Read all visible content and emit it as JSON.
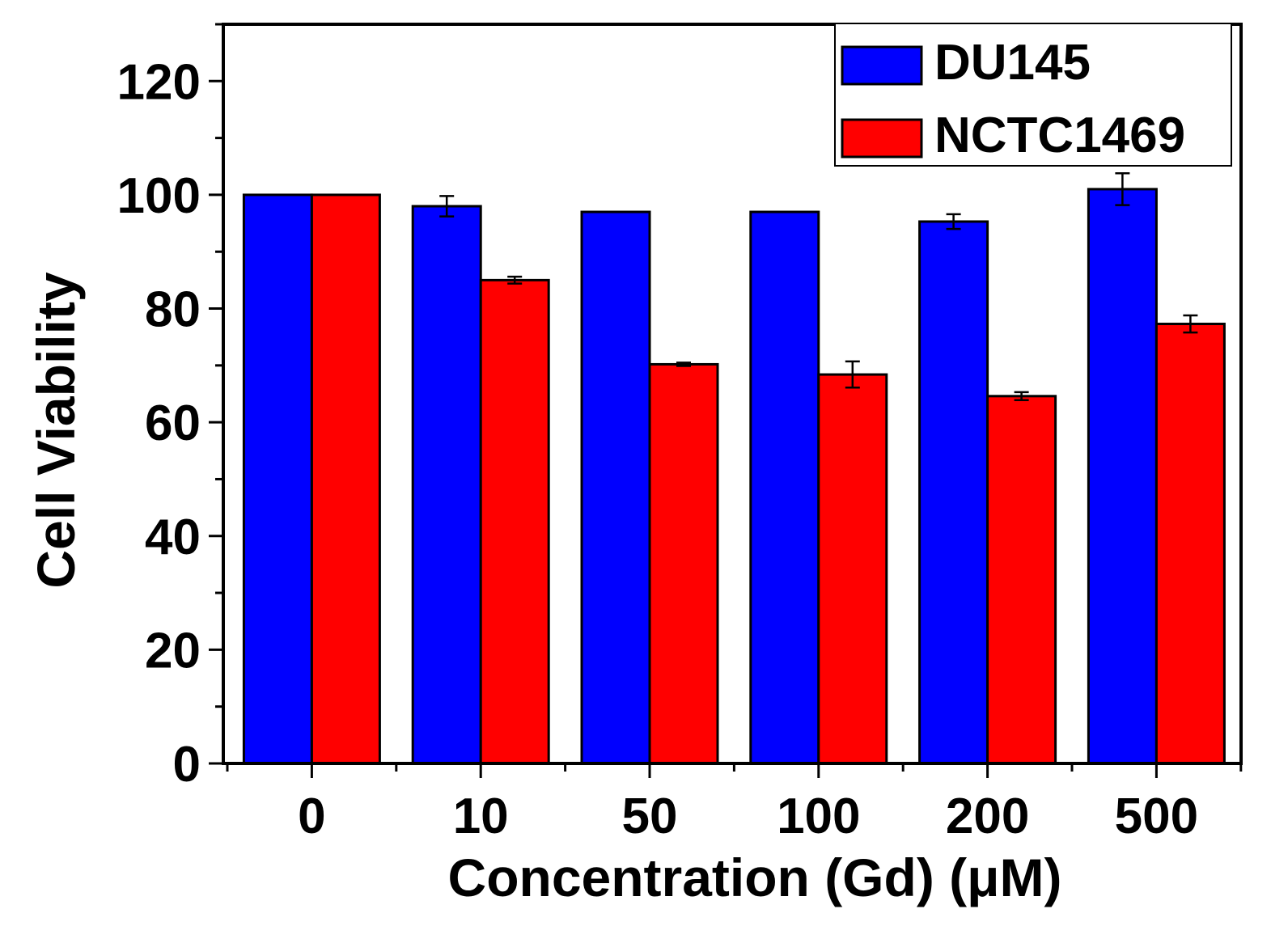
{
  "chart_data": {
    "type": "bar",
    "title": "",
    "xlabel": "Concentration (Gd) (μM)",
    "ylabel": "Cell Viability",
    "ylim": [
      0,
      130
    ],
    "yticks": [
      0,
      20,
      40,
      60,
      80,
      100,
      120
    ],
    "ytick_labels": [
      "0",
      "20",
      "40",
      "60",
      "80",
      "100",
      "120"
    ],
    "categories": [
      "0",
      "10",
      "50",
      "100",
      "200",
      "500"
    ],
    "legend_position": "top-right",
    "series": [
      {
        "name": "DU145",
        "color": "#0000ff",
        "values": [
          100,
          98,
          97,
          97,
          95.3,
          101
        ],
        "errors": [
          0,
          1.8,
          0,
          0,
          1.3,
          2.8
        ]
      },
      {
        "name": "NCTC1469",
        "color": "#ff0000",
        "values": [
          100,
          85,
          70.2,
          68.4,
          64.6,
          77.3
        ],
        "errors": [
          0,
          0.6,
          0.3,
          2.3,
          0.7,
          1.5
        ]
      }
    ]
  }
}
